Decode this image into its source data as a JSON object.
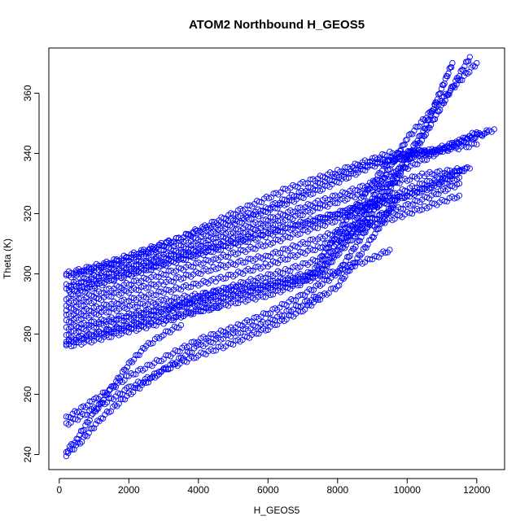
{
  "chart_data": {
    "type": "scatter",
    "title": "ATOM2 Northbound H_GEOS5",
    "xlabel": "H_GEOS5",
    "ylabel": "Theta (K)",
    "xlim": [
      -300,
      12800
    ],
    "ylim": [
      235,
      375
    ],
    "xticks": [
      0,
      2000,
      4000,
      6000,
      8000,
      10000,
      12000
    ],
    "yticks": [
      240,
      260,
      280,
      300,
      320,
      340,
      360
    ],
    "grid": false,
    "legend": "none",
    "marker": "open-circle",
    "colors": {
      "points": "#0000ff",
      "axes": "#000000",
      "background": "#ffffff"
    },
    "series": [
      {
        "points": [
          [
            200,
            300
          ],
          [
            1500,
            304
          ],
          [
            3000,
            310
          ],
          [
            4500,
            316
          ],
          [
            6000,
            322
          ],
          [
            7500,
            330
          ],
          [
            9000,
            337
          ],
          [
            10500,
            340
          ],
          [
            12000,
            343
          ]
        ]
      },
      {
        "points": [
          [
            200,
            299
          ],
          [
            1500,
            303
          ],
          [
            3000,
            308
          ],
          [
            4500,
            314
          ],
          [
            6000,
            321
          ],
          [
            7500,
            328
          ],
          [
            9000,
            336
          ],
          [
            10500,
            340
          ],
          [
            12500,
            348
          ]
        ]
      },
      {
        "points": [
          [
            200,
            296
          ],
          [
            1500,
            301
          ],
          [
            3000,
            306
          ],
          [
            4500,
            312
          ],
          [
            6000,
            318
          ],
          [
            7500,
            324
          ],
          [
            9000,
            330
          ],
          [
            10500,
            338
          ],
          [
            12000,
            347
          ]
        ]
      },
      {
        "points": [
          [
            200,
            295
          ],
          [
            1500,
            300
          ],
          [
            3000,
            305
          ],
          [
            4500,
            310
          ],
          [
            6000,
            316
          ],
          [
            7500,
            322
          ],
          [
            9000,
            328
          ],
          [
            10500,
            333
          ],
          [
            11800,
            335
          ]
        ]
      },
      {
        "points": [
          [
            200,
            292
          ],
          [
            1500,
            298
          ],
          [
            3000,
            303
          ],
          [
            4500,
            308
          ],
          [
            6000,
            313
          ],
          [
            7500,
            318
          ],
          [
            9000,
            324
          ],
          [
            10500,
            330
          ],
          [
            11500,
            334
          ]
        ]
      },
      {
        "points": [
          [
            200,
            290
          ],
          [
            1500,
            295
          ],
          [
            3000,
            300
          ],
          [
            4500,
            305
          ],
          [
            6000,
            310
          ],
          [
            7500,
            316
          ],
          [
            9000,
            322
          ],
          [
            10500,
            328
          ],
          [
            11700,
            335
          ]
        ]
      },
      {
        "points": [
          [
            200,
            288
          ],
          [
            1500,
            293
          ],
          [
            3000,
            297
          ],
          [
            4500,
            302
          ],
          [
            6000,
            306
          ],
          [
            7500,
            312
          ],
          [
            9000,
            318
          ],
          [
            10500,
            325
          ],
          [
            11500,
            330
          ]
        ]
      },
      {
        "points": [
          [
            200,
            286
          ],
          [
            1500,
            290
          ],
          [
            3000,
            294
          ],
          [
            4500,
            298
          ],
          [
            6000,
            303
          ],
          [
            7500,
            309
          ],
          [
            9000,
            316
          ],
          [
            10500,
            322
          ],
          [
            11500,
            326
          ]
        ]
      },
      {
        "points": [
          [
            200,
            284
          ],
          [
            1500,
            288
          ],
          [
            3000,
            291
          ],
          [
            4500,
            294
          ],
          [
            6000,
            297
          ],
          [
            7500,
            301
          ],
          [
            8500,
            315
          ],
          [
            9500,
            330
          ],
          [
            10500,
            348
          ],
          [
            11300,
            370
          ]
        ]
      },
      {
        "points": [
          [
            200,
            282
          ],
          [
            1500,
            285
          ],
          [
            3000,
            289
          ],
          [
            4500,
            292
          ],
          [
            6000,
            296
          ],
          [
            7500,
            300
          ],
          [
            8500,
            313
          ],
          [
            9500,
            328
          ],
          [
            10500,
            346
          ],
          [
            11800,
            372
          ]
        ]
      },
      {
        "points": [
          [
            200,
            280
          ],
          [
            1500,
            284
          ],
          [
            3000,
            288
          ],
          [
            4500,
            291
          ],
          [
            6000,
            295
          ],
          [
            7500,
            299
          ],
          [
            9000,
            305
          ],
          [
            9500,
            308
          ]
        ]
      },
      {
        "points": [
          [
            200,
            278
          ],
          [
            1500,
            281
          ],
          [
            3000,
            285
          ],
          [
            4500,
            289
          ],
          [
            6000,
            293
          ],
          [
            7000,
            297
          ],
          [
            8000,
            310
          ],
          [
            9000,
            325
          ],
          [
            10000,
            345
          ],
          [
            11000,
            358
          ],
          [
            12000,
            370
          ]
        ]
      },
      {
        "points": [
          [
            200,
            277
          ],
          [
            1000,
            280
          ],
          [
            2000,
            283
          ],
          [
            3000,
            287
          ],
          [
            4000,
            292
          ],
          [
            5000,
            296
          ],
          [
            6500,
            301
          ],
          [
            7500,
            305
          ],
          [
            8500,
            322
          ],
          [
            9500,
            338
          ],
          [
            10500,
            341
          ]
        ]
      },
      {
        "points": [
          [
            200,
            276
          ],
          [
            1000,
            278
          ],
          [
            2000,
            281
          ],
          [
            3000,
            284
          ],
          [
            4000,
            288
          ],
          [
            4600,
            289
          ]
        ]
      },
      {
        "points": [
          [
            200,
            252
          ],
          [
            1000,
            258
          ],
          [
            2000,
            266
          ],
          [
            3000,
            272
          ],
          [
            4000,
            278
          ],
          [
            5000,
            282
          ],
          [
            6000,
            287
          ],
          [
            7000,
            293
          ],
          [
            8000,
            300
          ],
          [
            9000,
            318
          ],
          [
            9600,
            322
          ]
        ]
      },
      {
        "points": [
          [
            200,
            250
          ],
          [
            1000,
            255
          ],
          [
            2000,
            262
          ],
          [
            3000,
            268
          ],
          [
            4000,
            273
          ],
          [
            5000,
            277
          ],
          [
            6000,
            282
          ],
          [
            7000,
            288
          ],
          [
            8000,
            296
          ],
          [
            9000,
            312
          ],
          [
            9700,
            325
          ]
        ]
      },
      {
        "points": [
          [
            200,
            241
          ],
          [
            500,
            245
          ],
          [
            1000,
            254
          ],
          [
            1500,
            262
          ],
          [
            2000,
            270
          ],
          [
            2500,
            276
          ],
          [
            3000,
            280
          ],
          [
            3500,
            283
          ]
        ]
      },
      {
        "points": [
          [
            200,
            240
          ],
          [
            600,
            244
          ],
          [
            1200,
            252
          ],
          [
            2000,
            260
          ],
          [
            3000,
            268
          ],
          [
            4000,
            276
          ],
          [
            5000,
            280
          ],
          [
            6000,
            284
          ],
          [
            7000,
            290
          ],
          [
            7500,
            293
          ]
        ]
      },
      {
        "points": [
          [
            500,
            300
          ],
          [
            2000,
            305
          ],
          [
            3500,
            312
          ],
          [
            5000,
            320
          ],
          [
            6500,
            328
          ],
          [
            8000,
            334
          ],
          [
            9500,
            340
          ],
          [
            11000,
            341
          ],
          [
            12300,
            347
          ]
        ]
      },
      {
        "points": [
          [
            300,
            294
          ],
          [
            2000,
            300
          ],
          [
            4000,
            307
          ],
          [
            6000,
            314
          ],
          [
            8000,
            320
          ],
          [
            10000,
            326
          ],
          [
            11500,
            332
          ]
        ]
      }
    ]
  }
}
